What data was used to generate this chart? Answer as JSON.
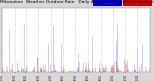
{
  "title": "Milwaukee  Weather Outdoor Rain   Daily Amount   (Past/Previous Year)",
  "title_fontsize": 3.2,
  "bg_color": "#d8d8d8",
  "plot_bg_color": "#ffffff",
  "legend_blue_color": "#0000cc",
  "legend_red_color": "#cc0000",
  "ylim": [
    0,
    1.8
  ],
  "num_days": 365,
  "seed": 42,
  "grid_color": "#aaaaaa",
  "month_ticks": [
    0,
    31,
    59,
    90,
    120,
    151,
    181,
    212,
    243,
    273,
    304,
    334
  ],
  "month_labels": [
    "01/01",
    "02/01",
    "03/01",
    "04/01",
    "05/01",
    "06/01",
    "07/01",
    "08/01",
    "09/01",
    "10/01",
    "11/01",
    "12/01"
  ]
}
